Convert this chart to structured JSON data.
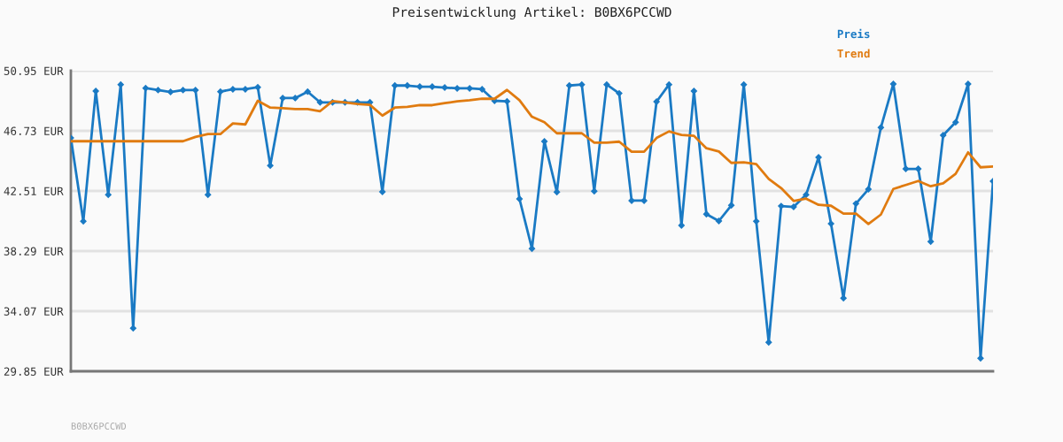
{
  "chart_data": {
    "type": "line",
    "title": "Preisentwicklung Artikel: B0BX6PCCWD",
    "categories": [
      null,
      null,
      null,
      null,
      null,
      null,
      null,
      null,
      null,
      null,
      null,
      null,
      null,
      null,
      null,
      null,
      null,
      null,
      null,
      null,
      null,
      null,
      null,
      null,
      null,
      null,
      null,
      null,
      null,
      null,
      null,
      null,
      null,
      null,
      null,
      null,
      null,
      null,
      null,
      null,
      null,
      null,
      null,
      null,
      null,
      null,
      null,
      null,
      null,
      null,
      null,
      null,
      null,
      null,
      null,
      null,
      null,
      null,
      null,
      null,
      null,
      null,
      null,
      null,
      null,
      null,
      null,
      null,
      null,
      null,
      null,
      null,
      null,
      null,
      null
    ],
    "series": [
      {
        "name": "Preis",
        "color": "#1a7ac4",
        "marker": "diamond",
        "values": [
          46.23,
          40.38,
          49.52,
          42.24,
          49.98,
          32.87,
          49.73,
          49.59,
          49.46,
          49.59,
          49.59,
          42.24,
          49.48,
          49.65,
          49.65,
          49.79,
          44.29,
          49.03,
          49.03,
          49.48,
          48.73,
          48.73,
          48.73,
          48.73,
          48.73,
          42.45,
          49.91,
          49.91,
          49.83,
          49.83,
          49.77,
          49.71,
          49.71,
          49.65,
          48.84,
          48.8,
          41.95,
          38.46,
          45.99,
          42.43,
          49.91,
          49.98,
          42.49,
          49.98,
          49.36,
          41.83,
          41.83,
          48.78,
          49.98,
          40.09,
          49.52,
          40.88,
          40.4,
          41.5,
          49.98,
          40.38,
          31.88,
          41.45,
          41.39,
          42.24,
          44.87,
          40.21,
          34.98,
          41.62,
          42.63,
          46.96,
          50.02,
          44.06,
          44.06,
          38.95,
          46.42,
          47.33,
          50.02,
          30.76,
          43.19
        ]
      },
      {
        "name": "Trend",
        "color": "#e07b10",
        "marker": "none",
        "values": [
          46.0,
          46.0,
          46.0,
          46.0,
          46.0,
          46.0,
          46.0,
          46.0,
          46.0,
          46.0,
          46.3,
          46.5,
          46.5,
          47.25,
          47.18,
          48.84,
          48.36,
          48.32,
          48.26,
          48.26,
          48.11,
          48.82,
          48.73,
          48.61,
          48.55,
          47.8,
          48.36,
          48.42,
          48.53,
          48.53,
          48.67,
          48.8,
          48.88,
          48.98,
          48.98,
          49.6,
          48.88,
          47.72,
          47.33,
          46.56,
          46.56,
          46.56,
          45.9,
          45.9,
          45.97,
          45.26,
          45.26,
          46.23,
          46.69,
          46.44,
          46.38,
          45.51,
          45.28,
          44.48,
          44.52,
          44.39,
          43.36,
          42.71,
          41.81,
          41.97,
          41.54,
          41.47,
          40.92,
          40.92,
          40.19,
          40.85,
          42.65,
          42.93,
          43.21,
          42.84,
          43.05,
          43.71,
          45.22,
          44.17,
          44.23
        ]
      }
    ],
    "ylim": [
      29.85,
      50.95
    ],
    "yticks": [
      {
        "value": 29.85,
        "label": "29.85 EUR"
      },
      {
        "value": 34.07,
        "label": "34.07 EUR"
      },
      {
        "value": 38.29,
        "label": "38.29 EUR"
      },
      {
        "value": 42.51,
        "label": "42.51 EUR"
      },
      {
        "value": 46.73,
        "label": "46.73 EUR"
      },
      {
        "value": 50.95,
        "label": "50.95 EUR"
      }
    ],
    "grid": "y",
    "legend": "top right",
    "line_style": "solid",
    "annotations": [
      "B0BX6PCCWD"
    ]
  }
}
